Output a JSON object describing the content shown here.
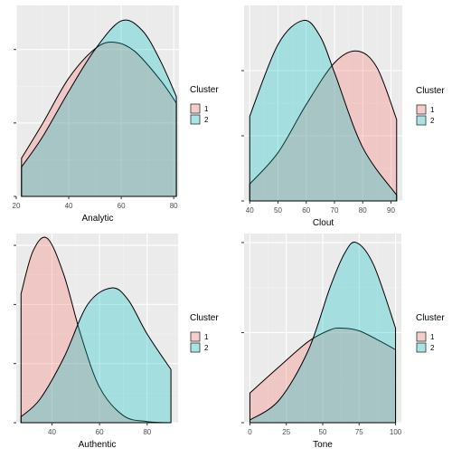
{
  "colors": {
    "cluster1_fill": "#F8766D",
    "cluster2_fill": "#00BFC4",
    "panel_bg": "#EBEBEB",
    "grid_major": "#FFFFFF",
    "grid_minor": "#F3F3F3",
    "tick_label": "#4D4D4D",
    "axis_title": "#000000"
  },
  "chart_data": [
    {
      "type": "area",
      "xlabel": "Analytic",
      "ylabel": "",
      "xlim": [
        20,
        82
      ],
      "ylim": [
        0,
        0.026
      ],
      "x_ticks": [
        20,
        40,
        60,
        80
      ],
      "y_grid": [
        0,
        0.01,
        0.02
      ],
      "grid": true,
      "legend": {
        "title": "Cluster",
        "entries": [
          "1",
          "2"
        ],
        "position": "right"
      },
      "series": [
        {
          "name": "1",
          "x": [
            22,
            30,
            40,
            50,
            57,
            65,
            75,
            81
          ],
          "values": [
            0.0052,
            0.0099,
            0.0161,
            0.0201,
            0.021,
            0.0198,
            0.0158,
            0.0127
          ]
        },
        {
          "name": "2",
          "x": [
            22,
            30,
            40,
            50,
            60,
            68,
            75,
            81
          ],
          "values": [
            0.004,
            0.0081,
            0.0143,
            0.02,
            0.0239,
            0.0226,
            0.0184,
            0.0136
          ]
        }
      ]
    },
    {
      "type": "area",
      "xlabel": "Clout",
      "ylabel": "",
      "xlim": [
        38,
        94
      ],
      "ylim": [
        0,
        0.03
      ],
      "x_ticks": [
        40,
        50,
        60,
        70,
        80,
        90
      ],
      "y_grid": [
        0,
        0.01,
        0.02
      ],
      "grid": true,
      "legend": {
        "title": "Cluster",
        "entries": [
          "1",
          "2"
        ],
        "position": "right"
      },
      "series": [
        {
          "name": "1",
          "x": [
            40,
            50,
            60,
            70,
            78,
            85,
            92
          ],
          "values": [
            0.0026,
            0.0074,
            0.0148,
            0.0212,
            0.023,
            0.0205,
            0.0125
          ]
        },
        {
          "name": "2",
          "x": [
            40,
            50,
            59,
            65,
            70,
            80,
            92
          ],
          "values": [
            0.013,
            0.024,
            0.0277,
            0.0252,
            0.0197,
            0.0082,
            0.0009
          ]
        }
      ]
    },
    {
      "type": "area",
      "xlabel": "Authentic",
      "ylabel": "",
      "xlim": [
        25,
        93
      ],
      "ylim": [
        0,
        0.032
      ],
      "x_ticks": [
        40,
        60,
        80
      ],
      "y_grid": [
        0,
        0.01,
        0.02,
        0.03
      ],
      "grid": true,
      "legend": {
        "title": "Cluster",
        "entries": [
          "1",
          "2"
        ],
        "position": "right"
      },
      "series": [
        {
          "name": "1",
          "x": [
            27,
            32,
            38,
            45,
            52,
            60,
            70,
            80,
            90
          ],
          "values": [
            0.0218,
            0.029,
            0.0312,
            0.025,
            0.015,
            0.006,
            0.0012,
            0.0002,
            0.0
          ]
        },
        {
          "name": "2",
          "x": [
            27,
            35,
            45,
            55,
            65,
            72,
            80,
            90
          ],
          "values": [
            0.001,
            0.004,
            0.011,
            0.02,
            0.0228,
            0.0208,
            0.015,
            0.009
          ]
        }
      ]
    },
    {
      "type": "area",
      "xlabel": "Tone",
      "ylabel": "",
      "xlim": [
        -4,
        104
      ],
      "ylim": [
        0,
        0.021
      ],
      "x_ticks": [
        0,
        25,
        50,
        75,
        100
      ],
      "y_grid": [
        0,
        0.01,
        0.02
      ],
      "grid": true,
      "legend": {
        "title": "Cluster",
        "entries": [
          "1",
          "2"
        ],
        "position": "right"
      },
      "series": [
        {
          "name": "1",
          "x": [
            0,
            20,
            40,
            55,
            63,
            75,
            90,
            100
          ],
          "values": [
            0.0033,
            0.0062,
            0.009,
            0.0103,
            0.0105,
            0.0102,
            0.009,
            0.0081
          ]
        },
        {
          "name": "2",
          "x": [
            0,
            20,
            40,
            55,
            65,
            73,
            85,
            100
          ],
          "values": [
            0.0003,
            0.0025,
            0.008,
            0.015,
            0.0188,
            0.02,
            0.0175,
            0.0105
          ]
        }
      ]
    }
  ]
}
